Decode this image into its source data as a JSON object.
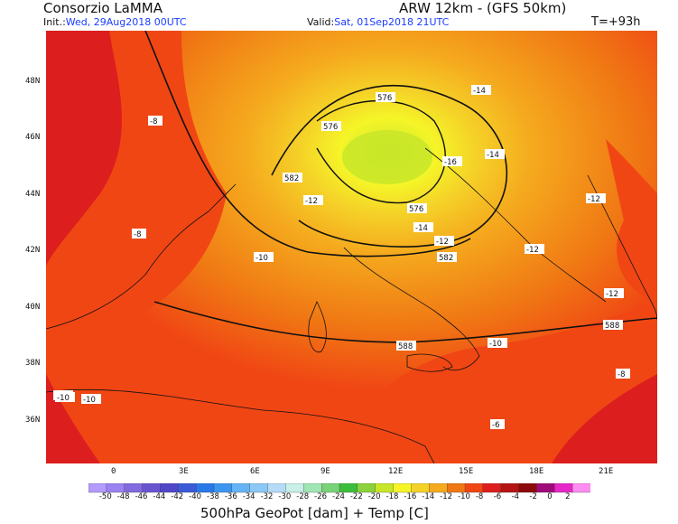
{
  "header": {
    "title": "Consorzio LaMMA",
    "model": "ARW 12km - (GFS 50km)",
    "init_prefix": "Init.:",
    "init_value": "Wed, 29Aug2018 00UTC",
    "valid_prefix": "Valid:",
    "valid_value": "Sat, 01Sep2018 21UTC",
    "step": "T=+93h"
  },
  "axes": {
    "lat_labels": [
      "48N",
      "46N",
      "44N",
      "42N",
      "40N",
      "38N",
      "36N"
    ],
    "lon_labels": [
      "0",
      "3E",
      "6E",
      "9E",
      "12E",
      "15E",
      "18E",
      "21E"
    ]
  },
  "map_labels": {
    "geopotential": [
      "576",
      "576",
      "582",
      "576",
      "582",
      "588",
      "588",
      "594"
    ],
    "temperature": [
      "-8",
      "-8",
      "-10",
      "-12",
      "-12",
      "-14",
      "-14",
      "-14",
      "-16",
      "-12",
      "-12",
      "-12",
      "-10",
      "-10",
      "-8",
      "-6",
      "-10"
    ]
  },
  "colorbar": {
    "title": "500hPa GeoPot [dam] + Temp [C]",
    "values": [
      -50,
      -48,
      -46,
      -44,
      -42,
      -40,
      -38,
      -36,
      -34,
      -32,
      -30,
      -28,
      -26,
      -24,
      -22,
      -20,
      -18,
      -16,
      -14,
      -12,
      -10,
      -8,
      -6,
      -4,
      -2,
      0,
      2
    ],
    "colors": [
      "#b49bff",
      "#9b82f0",
      "#826ae0",
      "#6a55d0",
      "#4f46c8",
      "#3a5ad8",
      "#2a78e8",
      "#3c96f0",
      "#64b4f5",
      "#8cc8f5",
      "#b4dcf8",
      "#c8f0e6",
      "#a0e6b4",
      "#78d278",
      "#3cbe3c",
      "#8cd23c",
      "#c8e628",
      "#f5f528",
      "#f5d228",
      "#f5aa1e",
      "#f07814",
      "#f04614",
      "#dc1e1e",
      "#b41414",
      "#8c0a0a",
      "#a00a78",
      "#e628c8",
      "#ff8cf0"
    ]
  }
}
